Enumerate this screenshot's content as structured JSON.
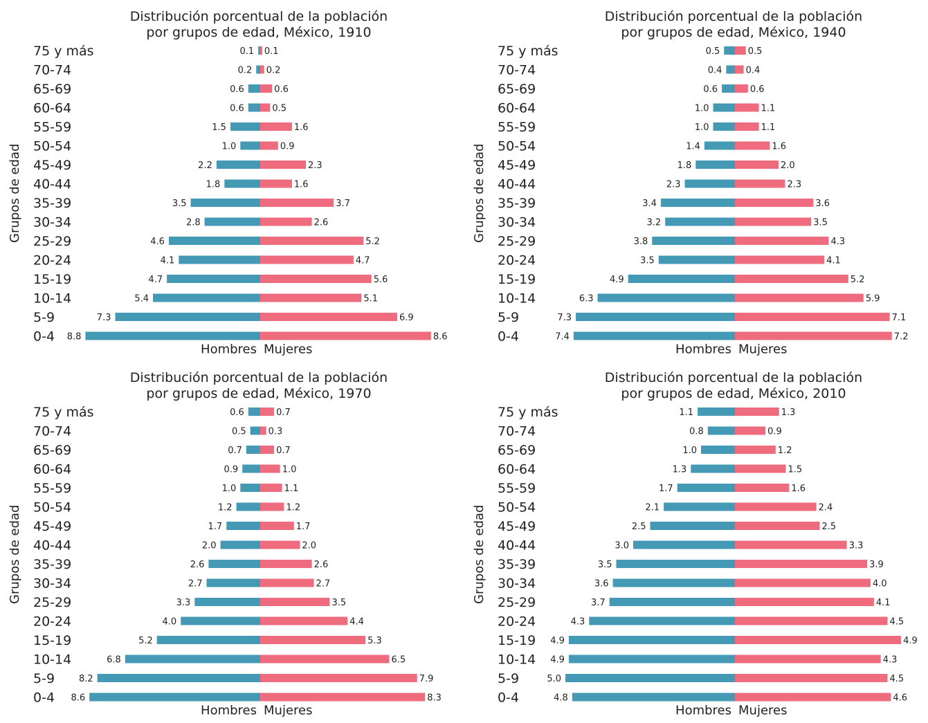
{
  "colors": {
    "hombres": "#4499b4",
    "mujeres": "#ef6b7e"
  },
  "chart_data": [
    {
      "type": "bar",
      "orientation": "horizontal-pyramid",
      "title": [
        "Distribución porcentual de la población",
        "por grupos de edad, México, 1910"
      ],
      "ylabel": "Grupos de edad",
      "categories": [
        "75 y más",
        "70-74",
        "65-69",
        "60-64",
        "55-59",
        "50-54",
        "45-49",
        "40-44",
        "35-39",
        "30-34",
        "25-29",
        "20-24",
        "15-19",
        "10-14",
        "5-9",
        "0-4"
      ],
      "series": [
        {
          "name": "Hombres",
          "values": [
            0.1,
            0.2,
            0.6,
            0.6,
            1.5,
            1.0,
            2.2,
            1.8,
            3.5,
            2.8,
            4.6,
            4.1,
            4.7,
            5.4,
            7.3,
            8.8
          ],
          "labels": [
            "0.1",
            "0.2",
            "0.6",
            "0.6",
            "1.5",
            "1.0",
            "2.2",
            "1.8",
            "3.5",
            "2.8",
            "4.6",
            "4.1",
            "4.7",
            "5.4",
            "7.3",
            "8.8"
          ]
        },
        {
          "name": "Mujeres",
          "values": [
            0.1,
            0.2,
            0.6,
            0.5,
            1.6,
            0.9,
            2.3,
            1.6,
            3.7,
            2.6,
            5.2,
            4.7,
            5.6,
            5.1,
            6.9,
            8.6
          ],
          "labels": [
            "0.1",
            "0.2",
            "0.6",
            "0.5",
            "1.6",
            "0.9",
            "2.3",
            "1.6",
            "3.7",
            "2.6",
            "5.2",
            "4.7",
            "5.6",
            "5.1",
            "6.9",
            "8.6"
          ]
        }
      ]
    },
    {
      "type": "bar",
      "orientation": "horizontal-pyramid",
      "title": [
        "Distribución  porcentual de la población",
        "por grupos de edad, México, 1940"
      ],
      "ylabel": "Grupos de edad",
      "categories": [
        "75 y más",
        "70-74",
        "65-69",
        "60-64",
        "55-59",
        "50-54",
        "45-49",
        "40-44",
        "35-39",
        "30-34",
        "25-29",
        "20-24",
        "15-19",
        "10-14",
        "5-9",
        "0-4"
      ],
      "series": [
        {
          "name": "Hombres",
          "values": [
            0.5,
            0.4,
            0.6,
            1.0,
            1.0,
            1.4,
            1.8,
            2.3,
            3.4,
            3.2,
            3.8,
            3.5,
            4.9,
            6.3,
            7.3,
            7.4
          ],
          "labels": [
            "0.5",
            "0.4",
            "0.6",
            "1.0",
            "1.0",
            "1.4",
            "1.8",
            "2.3",
            "3.4",
            "3.2",
            "3.8",
            "3.5",
            "4.9",
            "6.3",
            "7.3",
            "7.4"
          ]
        },
        {
          "name": "Mujeres",
          "values": [
            0.5,
            0.4,
            0.6,
            1.1,
            1.1,
            1.6,
            2.0,
            2.3,
            3.6,
            3.5,
            4.3,
            4.1,
            5.2,
            5.9,
            7.1,
            7.2
          ],
          "labels": [
            "0.5",
            "0.4",
            "0.6",
            "1.1",
            "1.1",
            "1.6",
            "2.0",
            "2.3",
            "3.6",
            "3.5",
            "4.3",
            "4.1",
            "5.2",
            "5.9",
            "7.1",
            "7.2"
          ]
        }
      ]
    },
    {
      "type": "bar",
      "orientation": "horizontal-pyramid",
      "title": [
        "Distribución  porcentual de la población",
        "por grupos de edad, México, 1970"
      ],
      "ylabel": "Grupos de edad",
      "categories": [
        "75 y más",
        "70-74",
        "65-69",
        "60-64",
        "55-59",
        "50-54",
        "45-49",
        "40-44",
        "35-39",
        "30-34",
        "25-29",
        "20-24",
        "15-19",
        "10-14",
        "5-9",
        "0-4"
      ],
      "series": [
        {
          "name": "Hombres",
          "values": [
            0.6,
            0.5,
            0.7,
            0.9,
            1.0,
            1.2,
            1.7,
            2.0,
            2.6,
            2.7,
            3.3,
            4.0,
            5.2,
            6.8,
            8.2,
            8.6
          ],
          "labels": [
            "0.6",
            "0.5",
            "0.7",
            "0.9",
            "1.0",
            "1.2",
            "1.7",
            "2.0",
            "2.6",
            "2.7",
            "3.3",
            "4.0",
            "5.2",
            "6.8",
            "8.2",
            "8.6"
          ]
        },
        {
          "name": "Mujeres",
          "values": [
            0.7,
            0.3,
            0.7,
            1.0,
            1.1,
            1.2,
            1.7,
            2.0,
            2.6,
            2.7,
            3.5,
            4.4,
            5.3,
            6.5,
            7.9,
            8.3
          ],
          "labels": [
            "0.7",
            "0.3",
            "0.7",
            "1.0",
            "1.1",
            "1.2",
            "1.7",
            "2.0",
            "2.6",
            "2.7",
            "3.5",
            "4.4",
            "5.3",
            "6.5",
            "7.9",
            "8.3"
          ]
        }
      ]
    },
    {
      "type": "bar",
      "orientation": "horizontal-pyramid",
      "title": [
        "Distribución  porcentual de la población",
        "por grupos de edad, México,  2010"
      ],
      "ylabel": "Grupos de edad",
      "categories": [
        "75 y más",
        "70-74",
        "65-69",
        "60-64",
        "55-59",
        "50-54",
        "45-49",
        "40-44",
        "35-39",
        "30-34",
        "25-29",
        "20-24",
        "15-19",
        "10-14",
        "5-9",
        "0-4"
      ],
      "series": [
        {
          "name": "Hombres",
          "values": [
            1.1,
            0.8,
            1.0,
            1.3,
            1.7,
            2.1,
            2.5,
            3.0,
            3.5,
            3.6,
            3.7,
            4.3,
            4.9,
            4.9,
            5.0,
            4.8
          ],
          "labels": [
            "1.1",
            "0.8",
            "1.0",
            "1.3",
            "1.7",
            "2.1",
            "2.5",
            "3.0",
            "3.5",
            "3.6",
            "3.7",
            "4.3",
            "4.9",
            "4.9",
            "5.0",
            "4.8"
          ]
        },
        {
          "name": "Mujeres",
          "values": [
            1.3,
            0.9,
            1.2,
            1.5,
            1.6,
            2.4,
            2.5,
            3.3,
            3.9,
            4.0,
            4.1,
            4.5,
            4.9,
            4.3,
            4.5,
            4.6
          ],
          "labels": [
            "1.3",
            "0.9",
            "1.2",
            "1.5",
            "1.6",
            "2.4",
            "2.5",
            "3.3",
            "3.9",
            "4.0",
            "4.1",
            "4.5",
            "4.9",
            "4.3",
            "4.5",
            "4.6"
          ]
        }
      ]
    }
  ]
}
